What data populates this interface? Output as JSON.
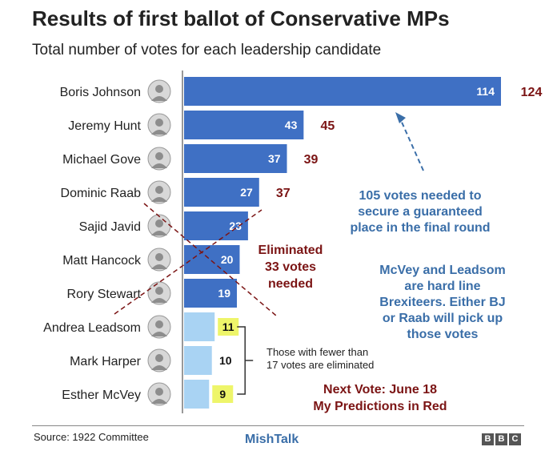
{
  "title": "Results of first ballot of Conservative MPs",
  "subtitle": "Total number of votes for each leadership candidate",
  "chart_data": {
    "type": "bar",
    "orientation": "horizontal",
    "title": "Results of first ballot of Conservative MPs",
    "subtitle": "Total number of votes for each leadership candidate",
    "xlim": [
      0,
      114
    ],
    "categories": [
      "Boris Johnson",
      "Jeremy Hunt",
      "Michael Gove",
      "Dominic Raab",
      "Sajid Javid",
      "Matt Hancock",
      "Rory Stewart",
      "Andrea Leadsom",
      "Mark Harper",
      "Esther McVey"
    ],
    "values": [
      114,
      43,
      37,
      27,
      23,
      20,
      19,
      11,
      10,
      9
    ],
    "eliminated": [
      false,
      false,
      false,
      false,
      false,
      false,
      false,
      true,
      true,
      true
    ],
    "highlighted_labels": [
      false,
      false,
      false,
      false,
      false,
      false,
      false,
      true,
      false,
      true
    ],
    "predictions": [
      {
        "candidate": "Boris Johnson",
        "value": "124"
      },
      {
        "candidate": "Jeremy Hunt",
        "value": "45"
      },
      {
        "candidate": "Michael Gove",
        "value": "39"
      },
      {
        "candidate": "Dominic Raab",
        "value": "37"
      }
    ],
    "colors": {
      "bar": "#3f70c4",
      "bar_eliminated": "#a9d3f3",
      "highlight": "#eef56a",
      "prediction": "#7b1414",
      "annotation_blue": "#3a6ea8"
    }
  },
  "annotations": {
    "eliminated_note": [
      "Eliminated",
      "33 votes",
      "needed"
    ],
    "votes_needed": [
      "105 votes needed to",
      "secure a guaranteed",
      "place in the final round"
    ],
    "mcvey_note": [
      "McVey and Leadsom",
      "are hard line",
      "Brexiteers. Either BJ",
      "or Raab will pick up",
      "those votes"
    ],
    "next_vote": [
      "Next Vote: June 18",
      "My Predictions in Red"
    ],
    "fewer_votes": [
      "Those with fewer than",
      "17 votes are eliminated"
    ]
  },
  "footer": {
    "source": "Source: 1922 Committee",
    "credit": "MishTalk",
    "logo_letters": [
      "B",
      "B",
      "C"
    ]
  }
}
